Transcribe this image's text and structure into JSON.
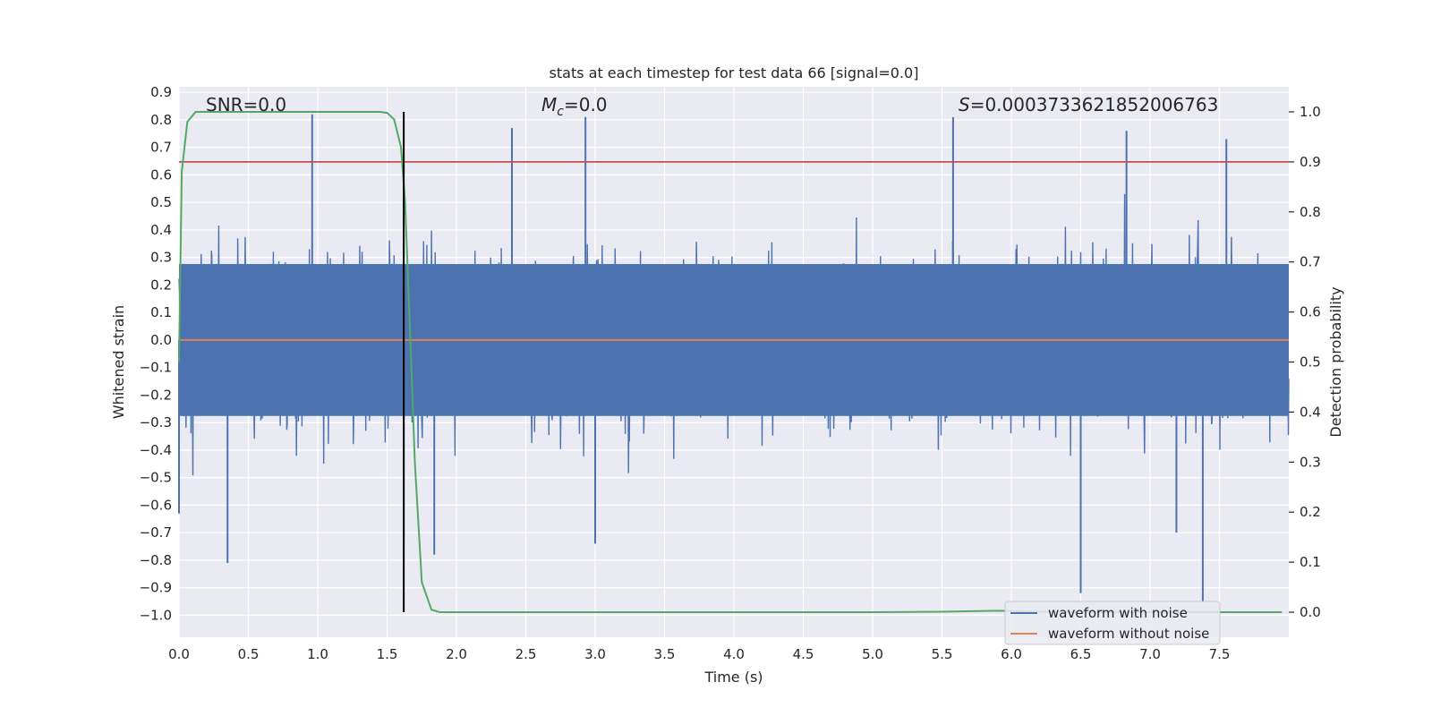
{
  "chart_data": {
    "type": "line",
    "title": "stats at each timestep for test data 66 [signal=0.0]",
    "xlabel": "Time (s)",
    "ylabel_left": "Whitened strain",
    "ylabel_right": "Detection probability",
    "xlim": [
      0.0,
      8.0
    ],
    "ylim_left": [
      -1.08,
      0.92
    ],
    "ylim_right": [
      -0.05,
      1.05
    ],
    "xticks": [
      "0.0",
      "0.5",
      "1.0",
      "1.5",
      "2.0",
      "2.5",
      "3.0",
      "3.5",
      "4.0",
      "4.5",
      "5.0",
      "5.5",
      "6.0",
      "6.5",
      "7.0",
      "7.5"
    ],
    "xtick_values": [
      0.0,
      0.5,
      1.0,
      1.5,
      2.0,
      2.5,
      3.0,
      3.5,
      4.0,
      4.5,
      5.0,
      5.5,
      6.0,
      6.5,
      7.0,
      7.5
    ],
    "yticks_left": [
      "0.9",
      "0.8",
      "0.7",
      "0.6",
      "0.5",
      "0.4",
      "0.3",
      "0.2",
      "0.1",
      "0.0",
      "−0.1",
      "−0.2",
      "−0.3",
      "−0.4",
      "−0.5",
      "−0.6",
      "−0.7",
      "−0.8",
      "−0.9",
      "−1.0"
    ],
    "ytick_values_left": [
      0.9,
      0.8,
      0.7,
      0.6,
      0.5,
      0.4,
      0.3,
      0.2,
      0.1,
      0.0,
      -0.1,
      -0.2,
      -0.3,
      -0.4,
      -0.5,
      -0.6,
      -0.7,
      -0.8,
      -0.9,
      -1.0
    ],
    "yticks_right": [
      "1.0",
      "0.9",
      "0.8",
      "0.7",
      "0.6",
      "0.5",
      "0.4",
      "0.3",
      "0.2",
      "0.1",
      "0.0"
    ],
    "ytick_values_right": [
      1.0,
      0.9,
      0.8,
      0.7,
      0.6,
      0.5,
      0.4,
      0.3,
      0.2,
      0.1,
      0.0
    ],
    "grid": true,
    "annotations": {
      "snr": "SNR=0.0",
      "mc_symbol": "M",
      "mc_subscript": "c",
      "mc_value": "=0.0",
      "s_symbol": "S",
      "s_value": "=0.0003733621852006763"
    },
    "series": [
      {
        "name": "waveform with noise",
        "axis": "left",
        "color": "#4c72b0",
        "kind": "noise",
        "amplitude_typical": 0.3,
        "peaks": [
          {
            "x": 0.0,
            "y": -0.63
          },
          {
            "x": 0.35,
            "y": -0.81
          },
          {
            "x": 0.96,
            "y": 0.82
          },
          {
            "x": 1.62,
            "y": -0.72
          },
          {
            "x": 1.84,
            "y": -0.78
          },
          {
            "x": 2.4,
            "y": 0.77
          },
          {
            "x": 2.93,
            "y": 0.81
          },
          {
            "x": 3.0,
            "y": -0.74
          },
          {
            "x": 5.58,
            "y": 0.81
          },
          {
            "x": 6.5,
            "y": -0.92
          },
          {
            "x": 6.83,
            "y": 0.76
          },
          {
            "x": 7.38,
            "y": -0.95
          },
          {
            "x": 7.55,
            "y": 0.73
          },
          {
            "x": 7.19,
            "y": -0.7
          }
        ]
      },
      {
        "name": "waveform without noise",
        "axis": "left",
        "color": "#dd8452",
        "x": [
          0.0,
          8.0
        ],
        "y": [
          0.0,
          0.0
        ]
      },
      {
        "axis": "right",
        "color": "#55a868",
        "x": [
          0.0,
          0.02,
          0.06,
          0.12,
          0.2,
          0.4,
          0.8,
          1.2,
          1.45,
          1.5,
          1.55,
          1.6,
          1.63,
          1.66,
          1.7,
          1.75,
          1.82,
          1.88,
          2.0,
          3.0,
          4.0,
          5.0,
          5.5,
          5.9,
          6.2,
          7.0,
          7.5,
          7.95
        ],
        "y": [
          0.5,
          0.88,
          0.98,
          1.0,
          1.0,
          1.0,
          1.0,
          1.0,
          1.0,
          0.998,
          0.985,
          0.93,
          0.82,
          0.6,
          0.3,
          0.06,
          0.005,
          0.0,
          0.0,
          0.0,
          0.0,
          0.0,
          0.001,
          0.003,
          0.001,
          0.0,
          0.0,
          0.0
        ]
      }
    ],
    "threshold_line": {
      "axis": "right",
      "y": 0.9,
      "color": "#c44e52"
    },
    "vertical_line": {
      "x": 1.62,
      "axis_range_right": [
        0.0,
        1.0
      ],
      "color": "#000000"
    },
    "legend": {
      "placement": "lower-right",
      "entries": [
        {
          "label": "waveform with noise",
          "color": "#4c72b0"
        },
        {
          "label": "waveform without noise",
          "color": "#dd8452"
        }
      ]
    },
    "colors": {
      "plot_bg": "#eaeaf2",
      "grid": "#ffffff",
      "text": "#262626"
    }
  }
}
